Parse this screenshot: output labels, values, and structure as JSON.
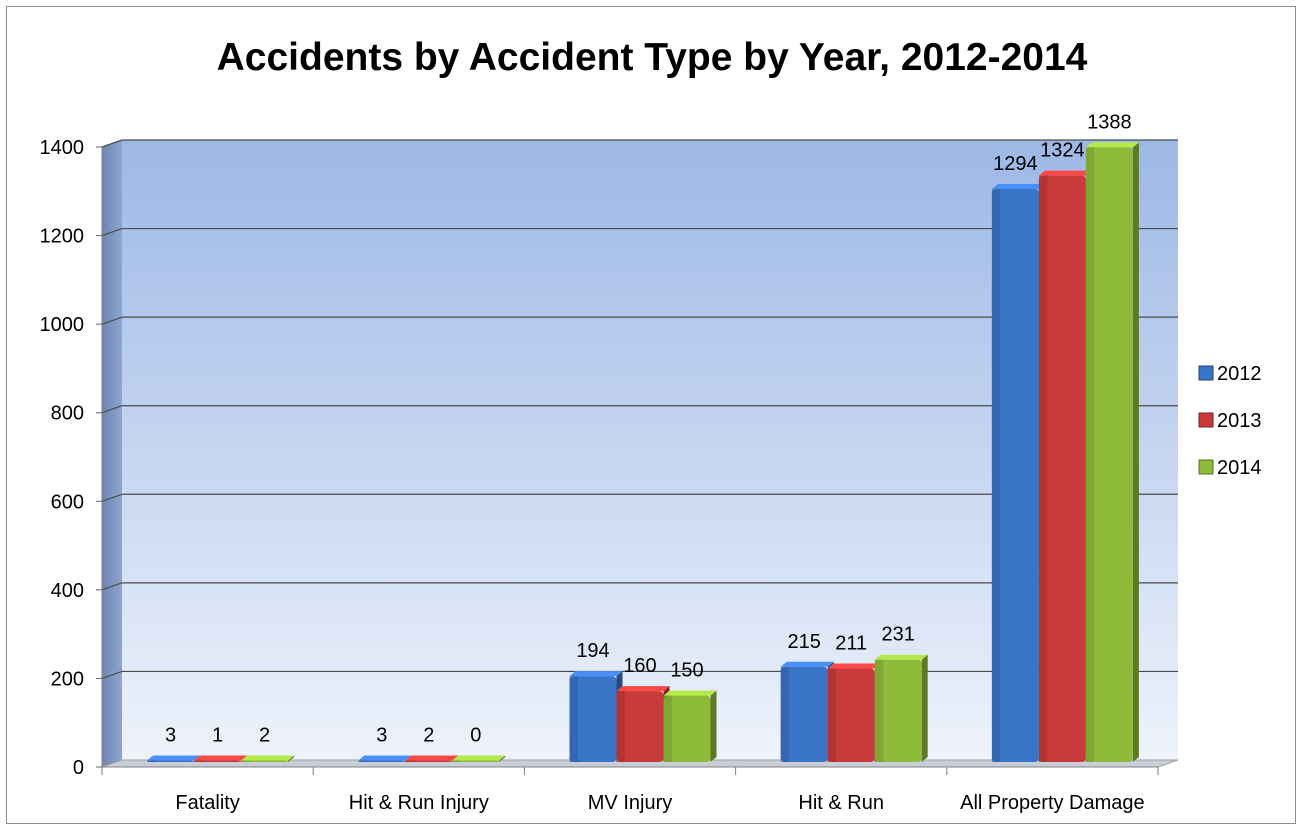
{
  "chart_data": {
    "type": "bar",
    "title": "Accidents by Accident Type by Year, 2012-2014",
    "xlabel": "",
    "ylabel": "",
    "categories": [
      "Fatality",
      "Hit & Run Injury",
      "MV Injury",
      "Hit & Run",
      "All Property Damage"
    ],
    "series": [
      {
        "name": "2012",
        "values": [
          3,
          3,
          194,
          215,
          1294
        ],
        "color": "#3a74c7"
      },
      {
        "name": "2013",
        "values": [
          1,
          2,
          160,
          211,
          1324
        ],
        "color": "#c93a3a"
      },
      {
        "name": "2014",
        "values": [
          2,
          0,
          150,
          231,
          1388
        ],
        "color": "#8fbb3a"
      }
    ],
    "ylim": [
      0,
      1400
    ],
    "yticks": [
      0,
      200,
      400,
      600,
      800,
      1000,
      1200,
      1400
    ],
    "grid": true,
    "legend": "right",
    "data_labels": true
  }
}
